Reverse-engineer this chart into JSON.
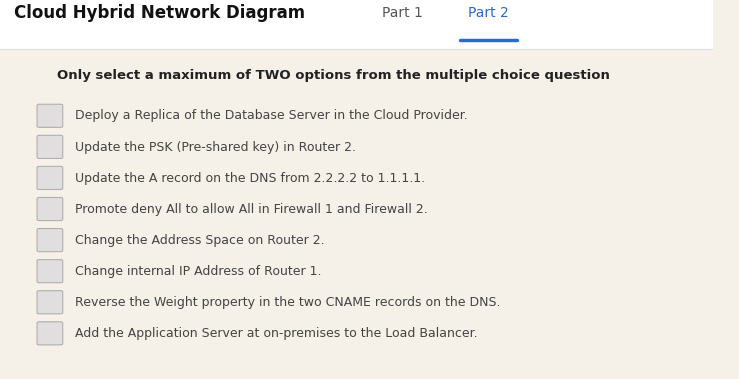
{
  "bg_color": "#f5f0e8",
  "header_bg": "#ffffff",
  "title": "Cloud Hybrid Network Diagram",
  "tab1": "Part 1",
  "tab2": "Part 2",
  "tab1_color": "#555555",
  "tab2_color": "#2a6bcc",
  "tab_underline_color": "#2a6bcc",
  "instruction": "Only select a maximum of TWO options from the multiple choice question",
  "options": [
    "Deploy a Replica of the Database Server in the Cloud Provider.",
    "Update the PSK (Pre-shared key) in Router 2.",
    "Update the A record on the DNS from 2.2.2.2 to 1.1.1.1.",
    "Promote deny All to allow All in Firewall 1 and Firewall 2.",
    "Change the Address Space on Router 2.",
    "Change internal IP Address of Router 1.",
    "Reverse the Weight property in the two CNAME records on the DNS.",
    "Add the Application Server at on-premises to the Load Balancer."
  ],
  "option_text_color": "#444444",
  "instruction_color": "#222222"
}
